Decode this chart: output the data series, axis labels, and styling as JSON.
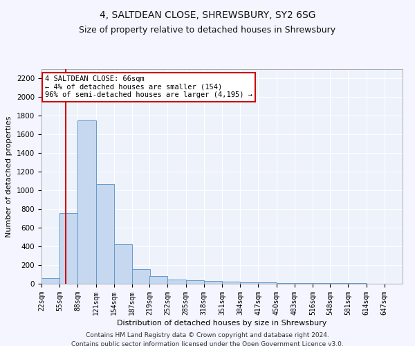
{
  "title1": "4, SALTDEAN CLOSE, SHREWSBURY, SY2 6SG",
  "title2": "Size of property relative to detached houses in Shrewsbury",
  "xlabel": "Distribution of detached houses by size in Shrewsbury",
  "ylabel": "Number of detached properties",
  "footnote1": "Contains HM Land Registry data © Crown copyright and database right 2024.",
  "footnote2": "Contains public sector information licensed under the Open Government Licence v3.0.",
  "bin_edges": [
    22,
    55,
    88,
    121,
    154,
    187,
    219,
    252,
    285,
    318,
    351,
    384,
    417,
    450,
    483,
    516,
    548,
    581,
    614,
    647,
    680
  ],
  "bar_heights": [
    60,
    760,
    1750,
    1070,
    420,
    155,
    85,
    45,
    35,
    30,
    20,
    18,
    15,
    8,
    8,
    6,
    5,
    4,
    3,
    2
  ],
  "bar_color": "#c5d8f0",
  "bar_edge_color": "#6699cc",
  "property_size": 66,
  "vline_color": "#cc0000",
  "annotation_line1": "4 SALTDEAN CLOSE: 66sqm",
  "annotation_line2": "← 4% of detached houses are smaller (154)",
  "annotation_line3": "96% of semi-detached houses are larger (4,195) →",
  "annotation_box_color": "#ffffff",
  "annotation_box_edge_color": "#cc0000",
  "ylim": [
    0,
    2300
  ],
  "yticks": [
    0,
    200,
    400,
    600,
    800,
    1000,
    1200,
    1400,
    1600,
    1800,
    2000,
    2200
  ],
  "bg_color": "#eef2fa",
  "grid_color": "#ffffff",
  "fig_bg_color": "#f5f5ff",
  "title1_fontsize": 10,
  "title2_fontsize": 9,
  "ylabel_fontsize": 8,
  "xlabel_fontsize": 8,
  "tick_fontsize": 7,
  "annotation_fontsize": 7.5,
  "footnote_fontsize": 6.5
}
